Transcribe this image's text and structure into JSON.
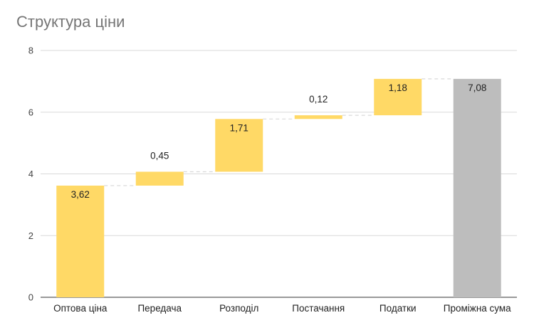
{
  "chart_data": {
    "type": "waterfall",
    "title": "Структура ціни",
    "xlabel": "",
    "ylabel": "",
    "ylim": [
      0,
      8
    ],
    "yticks": [
      0,
      2,
      4,
      6,
      8
    ],
    "grid": true,
    "legend": "none",
    "categories": [
      "Оптова ціна",
      "Передача",
      "Розподіл",
      "Постачання",
      "Податки",
      "Проміжна сума"
    ],
    "values": [
      3.62,
      0.45,
      1.71,
      0.12,
      1.18,
      7.08
    ],
    "value_labels": [
      "3,62",
      "0,45",
      "1,71",
      "0,12",
      "1,18",
      "7,08"
    ],
    "subtotal_index": 5,
    "colors": {
      "increase": "#ffd966",
      "subtotal": "#bdbdbd",
      "grid": "#d9d9d9",
      "connector": "#d9d9d9"
    }
  }
}
